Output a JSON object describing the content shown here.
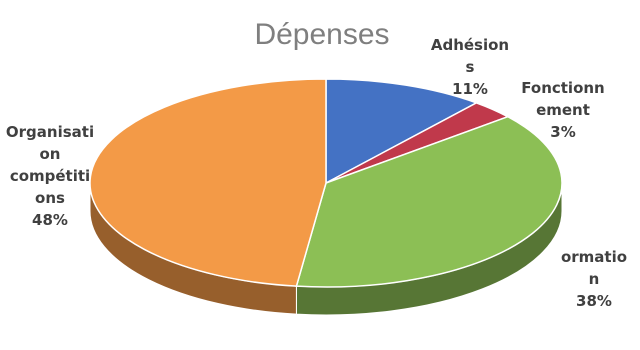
{
  "chart_data": {
    "type": "pie",
    "title": "Dépenses",
    "three_d": true,
    "slices": [
      {
        "lines": [
          "Adhésion",
          "s",
          "11%"
        ],
        "value": 11,
        "color": "#4472c4"
      },
      {
        "lines": [
          "Fonctionn",
          "ement",
          "3%"
        ],
        "value": 3,
        "color": "#c0394b"
      },
      {
        "lines": [
          "ormatio",
          "n",
          "38%"
        ],
        "value": 38,
        "color": "#8cbf55"
      },
      {
        "lines": [
          "Organisati",
          "on",
          "compétiti",
          "ons",
          "48%"
        ],
        "value": 48,
        "color": "#f39a47"
      }
    ]
  }
}
